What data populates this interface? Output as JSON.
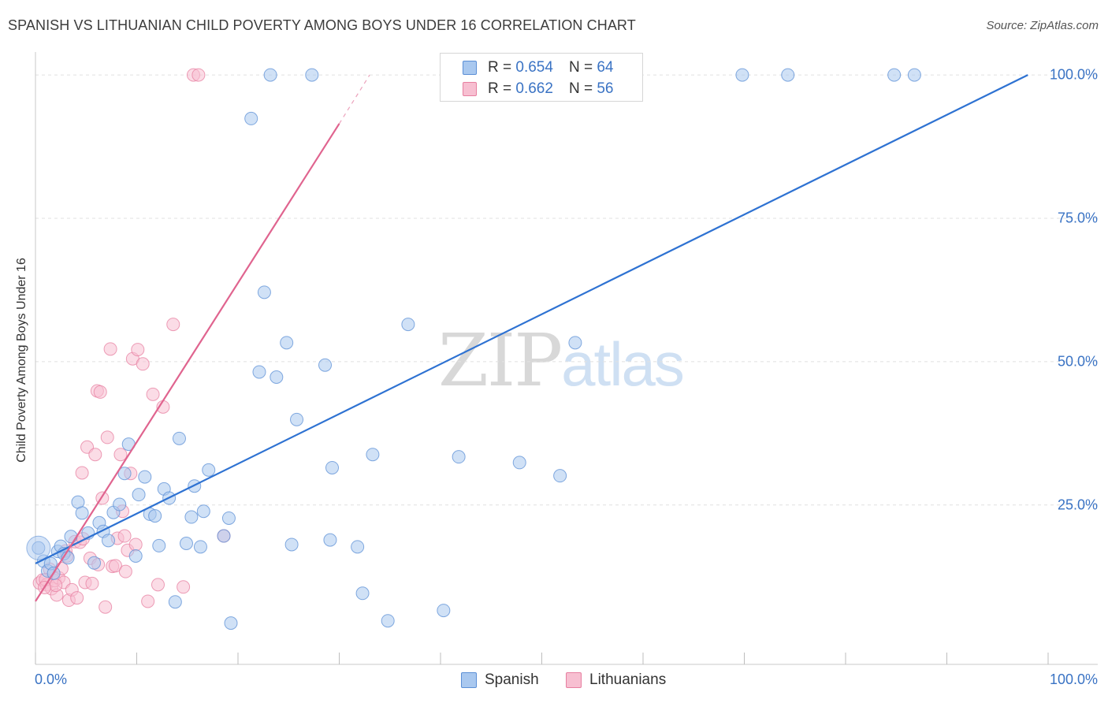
{
  "header": {
    "title": "SPANISH VS LITHUANIAN CHILD POVERTY AMONG BOYS UNDER 16 CORRELATION CHART",
    "source": "Source: ZipAtlas.com"
  },
  "watermark": {
    "zip": "ZIP",
    "atlas": "atlas"
  },
  "legend": {
    "r_label": "R =",
    "n_label": "N =",
    "entries": [
      {
        "name": "Spanish",
        "r": "0.654",
        "n": "64",
        "fill": "#a9c8ef",
        "stroke": "#5b8fd6"
      },
      {
        "name": "Lithuanians",
        "r": "0.662",
        "n": "56",
        "fill": "#f7bfd1",
        "stroke": "#e77fa0"
      }
    ]
  },
  "colors": {
    "blue_line": "#2e72d2",
    "pink_line": "#e0648f",
    "axis_text": "#3a73c4",
    "grid": "#e1e1e1"
  },
  "chart_data": {
    "type": "scatter",
    "title": "SPANISH VS LITHUANIAN CHILD POVERTY AMONG BOYS UNDER 16 CORRELATION CHART",
    "xlabel": "",
    "ylabel": "Child Poverty Among Boys Under 16",
    "xlim": [
      0,
      100
    ],
    "ylim": [
      -2.8,
      104
    ],
    "grid": true,
    "x_tick_labels": [
      {
        "value": 0,
        "label": "0.0%"
      },
      {
        "value": 100,
        "label": "100.0%"
      }
    ],
    "y_tick_labels": [
      {
        "value": 25,
        "label": "25.0%"
      },
      {
        "value": 50,
        "label": "50.0%"
      },
      {
        "value": 75,
        "label": "75.0%"
      },
      {
        "value": 100,
        "label": "100.0%"
      }
    ],
    "x_minor_ticks": [
      0,
      10,
      20,
      30,
      40,
      50,
      60,
      70,
      80,
      90,
      100
    ],
    "series": [
      {
        "name": "Spanish",
        "r": 0.654,
        "n": 64,
        "trendline": {
          "x0": 0,
          "y0": 14.8,
          "x1": 98,
          "y1": 100
        },
        "points": [
          [
            0.3,
            17.5
          ],
          [
            0.8,
            15.2
          ],
          [
            1.2,
            13.5
          ],
          [
            1.5,
            14.8
          ],
          [
            1.8,
            13.1
          ],
          [
            2.2,
            16.9
          ],
          [
            2.5,
            17.8
          ],
          [
            2.8,
            16.5
          ],
          [
            3.2,
            15.8
          ],
          [
            3.5,
            19.5
          ],
          [
            4.2,
            25.5
          ],
          [
            4.6,
            23.6
          ],
          [
            5.2,
            20.1
          ],
          [
            5.8,
            14.9
          ],
          [
            6.3,
            21.9
          ],
          [
            6.7,
            20.4
          ],
          [
            7.2,
            18.8
          ],
          [
            7.7,
            23.7
          ],
          [
            8.3,
            25.1
          ],
          [
            8.8,
            30.5
          ],
          [
            9.2,
            35.6
          ],
          [
            9.9,
            16.1
          ],
          [
            10.2,
            26.8
          ],
          [
            10.8,
            29.9
          ],
          [
            11.3,
            23.4
          ],
          [
            11.8,
            23.1
          ],
          [
            12.2,
            17.9
          ],
          [
            12.7,
            27.8
          ],
          [
            13.2,
            26.2
          ],
          [
            13.8,
            8.1
          ],
          [
            14.2,
            36.6
          ],
          [
            14.9,
            18.3
          ],
          [
            15.4,
            22.9
          ],
          [
            15.7,
            28.3
          ],
          [
            16.3,
            17.7
          ],
          [
            16.6,
            23.9
          ],
          [
            17.1,
            31.1
          ],
          [
            18.6,
            19.6
          ],
          [
            19.1,
            22.7
          ],
          [
            19.3,
            4.4
          ],
          [
            21.3,
            92.4
          ],
          [
            22.1,
            48.2
          ],
          [
            22.6,
            62.1
          ],
          [
            23.2,
            100
          ],
          [
            23.8,
            47.3
          ],
          [
            24.8,
            53.3
          ],
          [
            25.3,
            18.1
          ],
          [
            25.8,
            39.9
          ],
          [
            27.3,
            100
          ],
          [
            28.6,
            49.4
          ],
          [
            29.1,
            18.9
          ],
          [
            29.3,
            31.5
          ],
          [
            31.8,
            17.7
          ],
          [
            32.3,
            9.6
          ],
          [
            33.3,
            33.8
          ],
          [
            34.8,
            4.8
          ],
          [
            36.8,
            56.5
          ],
          [
            40.3,
            6.6
          ],
          [
            41.8,
            33.4
          ],
          [
            47.8,
            32.4
          ],
          [
            51.8,
            30.1
          ],
          [
            53.3,
            53.3
          ],
          [
            69.8,
            100
          ],
          [
            74.3,
            100
          ],
          [
            84.8,
            100
          ],
          [
            86.8,
            100
          ]
        ]
      },
      {
        "name": "Lithuanians",
        "r": 0.662,
        "n": 56,
        "trendline": {
          "x0": 0,
          "y0": 8.2,
          "x1": 30,
          "y1": 91.5,
          "dashed_to_x": 33,
          "dashed_to_y": 100
        },
        "points": [
          [
            0.4,
            11.4
          ],
          [
            0.7,
            11.9
          ],
          [
            1.1,
            11.1
          ],
          [
            1.4,
            13.8
          ],
          [
            1.6,
            10.4
          ],
          [
            1.9,
            11.8
          ],
          [
            2.1,
            9.3
          ],
          [
            2.3,
            12.3
          ],
          [
            2.6,
            13.9
          ],
          [
            2.8,
            11.5
          ],
          [
            3.1,
            16.1
          ],
          [
            3.3,
            8.4
          ],
          [
            3.6,
            10.2
          ],
          [
            3.9,
            18.6
          ],
          [
            4.1,
            8.8
          ],
          [
            4.4,
            18.5
          ],
          [
            4.6,
            30.6
          ],
          [
            4.9,
            11.5
          ],
          [
            5.1,
            35.1
          ],
          [
            5.4,
            15.7
          ],
          [
            5.6,
            11.3
          ],
          [
            5.9,
            33.8
          ],
          [
            6.1,
            44.9
          ],
          [
            6.4,
            44.7
          ],
          [
            6.6,
            26.2
          ],
          [
            6.9,
            7.2
          ],
          [
            7.1,
            36.8
          ],
          [
            7.4,
            52.2
          ],
          [
            7.6,
            14.3
          ],
          [
            7.9,
            14.4
          ],
          [
            8.1,
            19.2
          ],
          [
            8.4,
            33.8
          ],
          [
            8.6,
            23.9
          ],
          [
            8.9,
            13.4
          ],
          [
            9.1,
            17.1
          ],
          [
            9.4,
            30.5
          ],
          [
            9.6,
            50.5
          ],
          [
            10.1,
            52.1
          ],
          [
            10.6,
            49.6
          ],
          [
            11.1,
            8.2
          ],
          [
            11.6,
            44.3
          ],
          [
            12.1,
            11.1
          ],
          [
            12.6,
            42.1
          ],
          [
            13.6,
            56.5
          ],
          [
            14.6,
            10.7
          ],
          [
            15.6,
            100
          ],
          [
            16.1,
            100
          ],
          [
            18.6,
            19.6
          ],
          [
            1.0,
            12.0
          ],
          [
            2.0,
            11.0
          ],
          [
            3.0,
            17.0
          ],
          [
            6.2,
            14.6
          ],
          [
            9.9,
            18.1
          ],
          [
            0.9,
            10.6
          ],
          [
            4.7,
            19.1
          ],
          [
            8.8,
            19.6
          ]
        ]
      }
    ]
  }
}
